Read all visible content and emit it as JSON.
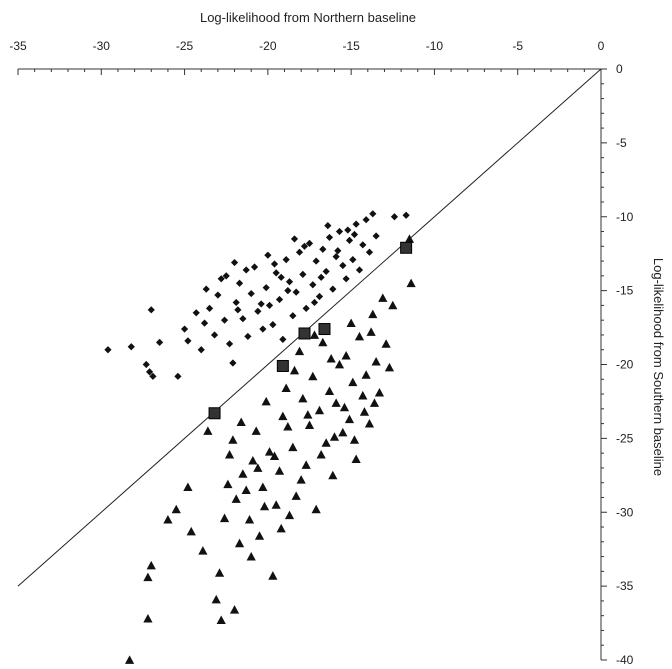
{
  "chart_data": {
    "type": "scatter",
    "title": "",
    "xlabel": "Log-likelihood from Northern baseline",
    "ylabel": "Log-likelihood from Southern baseline",
    "xlim": [
      -35,
      0
    ],
    "ylim": [
      -40,
      0
    ],
    "x_axis_position": "top",
    "y_axis_position": "right",
    "grid": false,
    "legend": "none",
    "x_ticks": [
      -35,
      -30,
      -25,
      -20,
      -15,
      -10,
      -5,
      0
    ],
    "y_ticks": [
      0,
      -5,
      -10,
      -15,
      -20,
      -25,
      -30,
      -35,
      -40
    ],
    "x_tick_labels": [
      "-35",
      "-30",
      "-25",
      "-20",
      "-15",
      "-10",
      "-5",
      "0"
    ],
    "y_tick_labels": [
      "0",
      "-5",
      "-10",
      "-15",
      "-20",
      "-25",
      "-30",
      "-35",
      "-40"
    ],
    "reference_line": {
      "x": [
        -35,
        0
      ],
      "y": [
        -35,
        0
      ]
    },
    "series": [
      {
        "marker": "diamond",
        "color": "#111111",
        "points": [
          [
            -29.6,
            -19.0
          ],
          [
            -28.2,
            -18.8
          ],
          [
            -27.0,
            -16.3
          ],
          [
            -27.3,
            -20.0
          ],
          [
            -27.1,
            -20.5
          ],
          [
            -26.9,
            -20.8
          ],
          [
            -26.5,
            -18.5
          ],
          [
            -25.4,
            -20.8
          ],
          [
            -25.0,
            -17.6
          ],
          [
            -24.8,
            -18.4
          ],
          [
            -24.3,
            -16.5
          ],
          [
            -24.0,
            -19.0
          ],
          [
            -23.8,
            -17.2
          ],
          [
            -23.5,
            -16.2
          ],
          [
            -23.2,
            -18.0
          ],
          [
            -23.0,
            -15.3
          ],
          [
            -22.8,
            -14.2
          ],
          [
            -22.6,
            -17.0
          ],
          [
            -22.3,
            -18.6
          ],
          [
            -22.1,
            -19.9
          ],
          [
            -21.9,
            -15.8
          ],
          [
            -21.7,
            -14.5
          ],
          [
            -21.5,
            -16.9
          ],
          [
            -21.2,
            -18.1
          ],
          [
            -21.0,
            -15.2
          ],
          [
            -20.8,
            -13.4
          ],
          [
            -20.6,
            -16.4
          ],
          [
            -20.3,
            -17.6
          ],
          [
            -20.1,
            -14.8
          ],
          [
            -19.9,
            -16.0
          ],
          [
            -19.7,
            -17.3
          ],
          [
            -19.5,
            -13.8
          ],
          [
            -19.3,
            -15.6
          ],
          [
            -19.1,
            -18.3
          ],
          [
            -18.9,
            -12.9
          ],
          [
            -18.7,
            -14.4
          ],
          [
            -18.5,
            -16.7
          ],
          [
            -18.3,
            -15.1
          ],
          [
            -18.1,
            -12.4
          ],
          [
            -17.9,
            -13.9
          ],
          [
            -17.7,
            -16.2
          ],
          [
            -17.5,
            -11.8
          ],
          [
            -17.3,
            -14.6
          ],
          [
            -17.1,
            -13.0
          ],
          [
            -16.9,
            -15.4
          ],
          [
            -16.7,
            -12.2
          ],
          [
            -16.5,
            -13.7
          ],
          [
            -16.3,
            -11.4
          ],
          [
            -16.1,
            -14.9
          ],
          [
            -15.9,
            -12.7
          ],
          [
            -15.7,
            -11.0
          ],
          [
            -15.5,
            -13.3
          ],
          [
            -15.3,
            -14.2
          ],
          [
            -15.1,
            -11.6
          ],
          [
            -14.9,
            -12.9
          ],
          [
            -14.7,
            -10.5
          ],
          [
            -14.5,
            -13.6
          ],
          [
            -14.3,
            -11.9
          ],
          [
            -14.1,
            -10.2
          ],
          [
            -13.9,
            -12.4
          ],
          [
            -13.7,
            -9.8
          ],
          [
            -13.5,
            -11.3
          ],
          [
            -12.4,
            -10.0
          ],
          [
            -11.7,
            -9.9
          ],
          [
            -22.5,
            -14.0
          ],
          [
            -21.3,
            -13.6
          ],
          [
            -20.4,
            -15.9
          ],
          [
            -19.6,
            -13.2
          ],
          [
            -18.8,
            -15.0
          ],
          [
            -17.8,
            -12.0
          ],
          [
            -16.8,
            -14.1
          ],
          [
            -15.8,
            -12.3
          ],
          [
            -14.8,
            -11.2
          ],
          [
            -20.0,
            -12.6
          ],
          [
            -18.4,
            -11.5
          ],
          [
            -16.4,
            -10.6
          ],
          [
            -15.2,
            -10.9
          ],
          [
            -19.2,
            -14.1
          ],
          [
            -17.2,
            -15.8
          ],
          [
            -21.8,
            -16.3
          ],
          [
            -23.7,
            -14.9
          ],
          [
            -22.0,
            -13.1
          ]
        ]
      },
      {
        "marker": "triangle",
        "color": "#111111",
        "points": [
          [
            -28.3,
            -40.0
          ],
          [
            -27.2,
            -37.2
          ],
          [
            -27.0,
            -33.6
          ],
          [
            -27.2,
            -34.4
          ],
          [
            -26.0,
            -30.5
          ],
          [
            -25.5,
            -29.8
          ],
          [
            -24.6,
            -31.3
          ],
          [
            -23.6,
            -24.5
          ],
          [
            -23.3,
            -23.3
          ],
          [
            -23.1,
            -35.9
          ],
          [
            -22.9,
            -34.1
          ],
          [
            -22.8,
            -37.3
          ],
          [
            -22.6,
            -30.4
          ],
          [
            -22.4,
            -28.1
          ],
          [
            -22.3,
            -26.1
          ],
          [
            -22.1,
            -25.1
          ],
          [
            -21.9,
            -29.1
          ],
          [
            -21.7,
            -32.1
          ],
          [
            -21.5,
            -27.4
          ],
          [
            -21.3,
            -28.5
          ],
          [
            -21.1,
            -30.5
          ],
          [
            -20.9,
            -26.5
          ],
          [
            -20.7,
            -24.5
          ],
          [
            -20.5,
            -31.6
          ],
          [
            -20.3,
            -28.3
          ],
          [
            -20.1,
            -22.5
          ],
          [
            -19.9,
            -25.9
          ],
          [
            -19.7,
            -34.3
          ],
          [
            -19.5,
            -29.5
          ],
          [
            -19.3,
            -27.2
          ],
          [
            -19.1,
            -23.5
          ],
          [
            -18.9,
            -21.6
          ],
          [
            -18.7,
            -30.2
          ],
          [
            -18.5,
            -25.6
          ],
          [
            -18.3,
            -28.9
          ],
          [
            -18.1,
            -19.1
          ],
          [
            -17.9,
            -22.3
          ],
          [
            -17.7,
            -26.8
          ],
          [
            -17.5,
            -24.1
          ],
          [
            -17.3,
            -20.8
          ],
          [
            -17.1,
            -29.8
          ],
          [
            -16.9,
            -23.1
          ],
          [
            -16.7,
            -18.5
          ],
          [
            -16.5,
            -25.3
          ],
          [
            -16.3,
            -21.8
          ],
          [
            -16.1,
            -27.5
          ],
          [
            -15.9,
            -22.6
          ],
          [
            -15.7,
            -20.0
          ],
          [
            -15.5,
            -24.6
          ],
          [
            -15.3,
            -19.4
          ],
          [
            -15.1,
            -23.7
          ],
          [
            -14.9,
            -21.2
          ],
          [
            -14.7,
            -26.4
          ],
          [
            -14.5,
            -18.1
          ],
          [
            -14.3,
            -22.1
          ],
          [
            -14.1,
            -20.7
          ],
          [
            -13.9,
            -24.0
          ],
          [
            -13.7,
            -16.6
          ],
          [
            -13.5,
            -19.8
          ],
          [
            -13.3,
            -21.9
          ],
          [
            -13.1,
            -15.5
          ],
          [
            -12.9,
            -18.6
          ],
          [
            -12.7,
            -20.2
          ],
          [
            -11.4,
            -14.5
          ],
          [
            -11.5,
            -11.5
          ],
          [
            -24.8,
            -28.3
          ],
          [
            -23.9,
            -32.6
          ],
          [
            -22.0,
            -36.6
          ],
          [
            -21.0,
            -33.0
          ],
          [
            -20.6,
            -27.0
          ],
          [
            -19.6,
            -26.2
          ],
          [
            -18.8,
            -24.2
          ],
          [
            -18.0,
            -27.8
          ],
          [
            -17.6,
            -23.4
          ],
          [
            -16.8,
            -26.1
          ],
          [
            -16.0,
            -24.9
          ],
          [
            -15.4,
            -22.9
          ],
          [
            -14.8,
            -25.1
          ],
          [
            -14.2,
            -23.2
          ],
          [
            -13.6,
            -22.6
          ],
          [
            -19.2,
            -31.1
          ],
          [
            -20.2,
            -29.6
          ],
          [
            -21.6,
            -23.9
          ],
          [
            -18.4,
            -20.4
          ],
          [
            -17.2,
            -18.0
          ],
          [
            -16.2,
            -19.6
          ],
          [
            -15.0,
            -17.2
          ],
          [
            -13.8,
            -17.8
          ],
          [
            -12.5,
            -16.0
          ]
        ]
      },
      {
        "marker": "square",
        "color": "#333333",
        "points": [
          [
            -23.2,
            -23.3
          ],
          [
            -19.1,
            -20.1
          ],
          [
            -17.8,
            -17.9
          ],
          [
            -16.6,
            -17.6
          ],
          [
            -11.7,
            -12.1
          ]
        ]
      }
    ]
  }
}
